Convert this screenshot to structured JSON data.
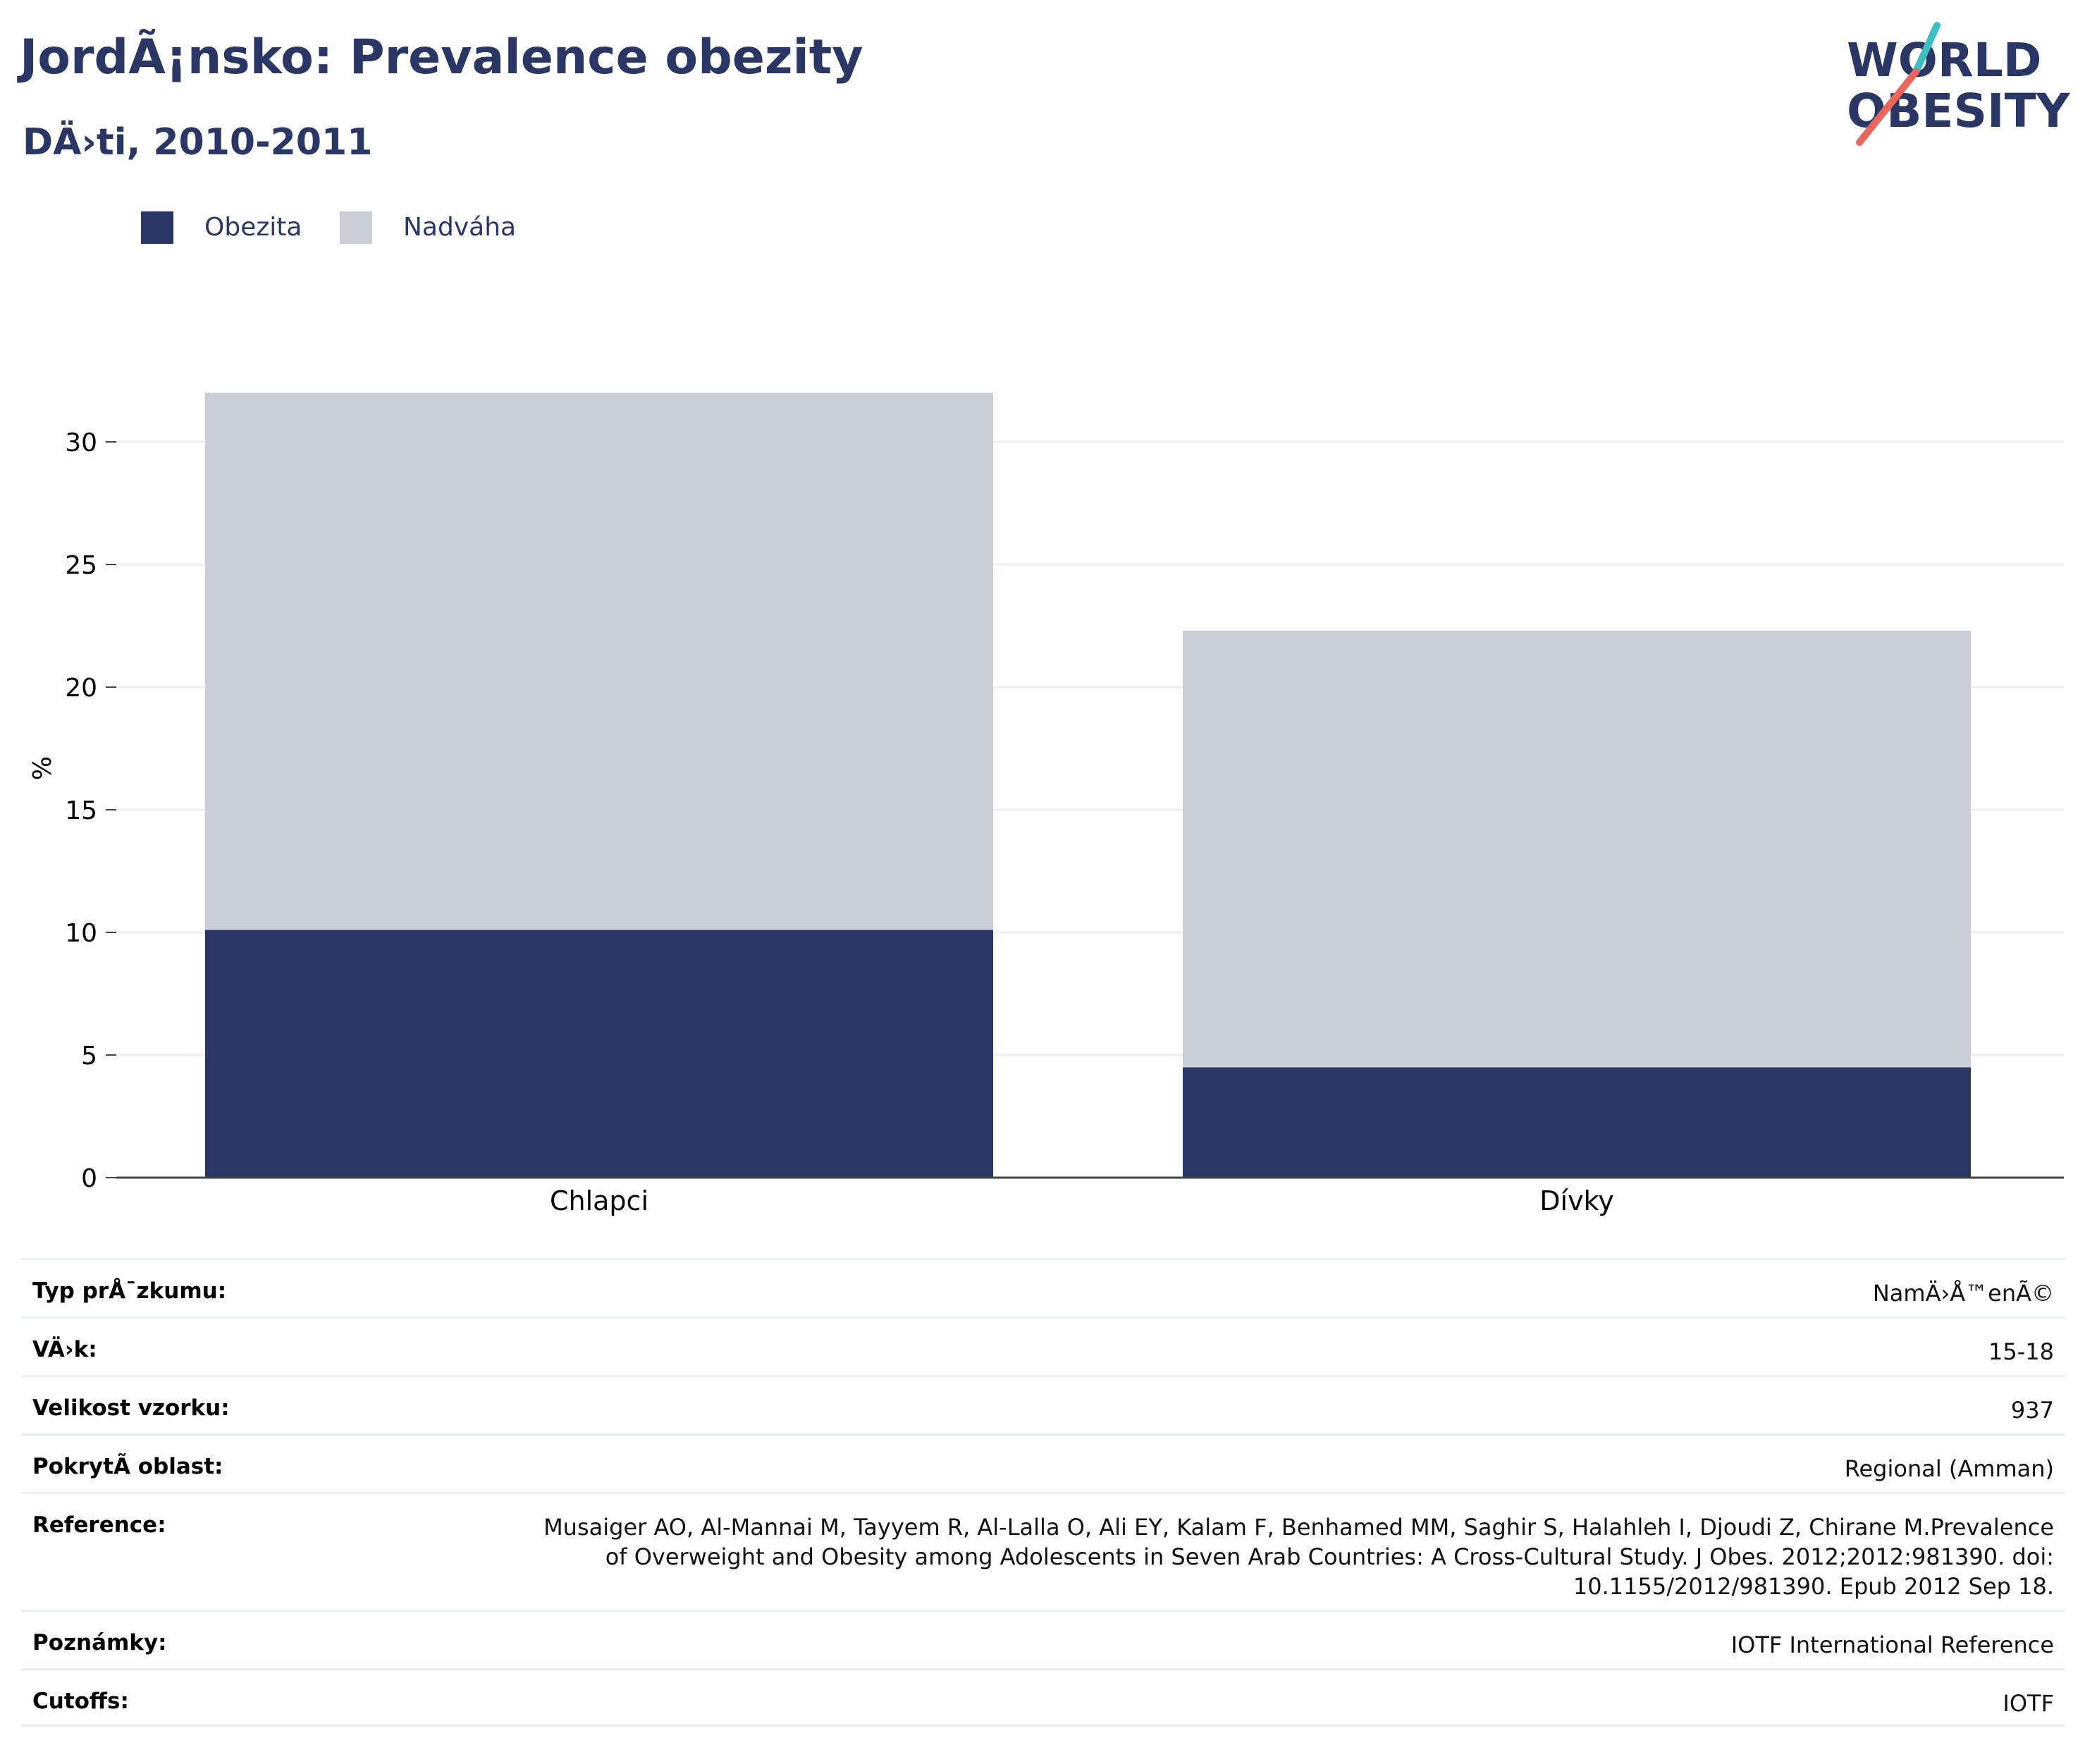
{
  "header": {
    "title": "JordÃ¡nsko: Prevalence obezity",
    "subtitle": "DÄ›ti, 2010-2011"
  },
  "logo": {
    "line1": "WORLD",
    "line2": "OBESITY",
    "colors": {
      "navy": "#2a3663",
      "teal": "#3dbec3",
      "coral": "#e8665a"
    }
  },
  "legend": {
    "items": [
      {
        "label": "Obezita",
        "color": "#2a3663"
      },
      {
        "label": "Nadváha",
        "color": "#cbcdd8"
      }
    ]
  },
  "chart_data": {
    "type": "bar",
    "stacked": true,
    "categories": [
      "Chlapci",
      "Dívky"
    ],
    "series": [
      {
        "name": "Obezita",
        "color": "#2a3663",
        "values": [
          10.1,
          4.5
        ]
      },
      {
        "name": "Nadváha",
        "color": "#cbcdd8",
        "values": [
          21.9,
          17.8
        ]
      }
    ],
    "ylabel": "%",
    "ylim": [
      0,
      32
    ],
    "yticks": [
      "0",
      "5",
      "10",
      "15",
      "20",
      "25",
      "30"
    ],
    "grid": true,
    "legend_position": "top-left"
  },
  "meta": {
    "survey_type": {
      "label": "Typ prÅ¯zkumu:",
      "value": "NamÄ›Å™enÃ©"
    },
    "age": {
      "label": "VÄ›k:",
      "value": "15-18"
    },
    "sample_size": {
      "label": "Velikost vzorku:",
      "value": "937"
    },
    "coverage": {
      "label": "PokrytÃ­ oblast:",
      "value": "Regional (Amman)"
    },
    "reference": {
      "label": "Reference:",
      "lines": [
        "Musaiger AO, Al-Mannai M, Tayyem R, Al-Lalla O, Ali EY, Kalam F, Benhamed MM, Saghir S, Halahleh I, Djoudi Z, Chirane M.Prevalence",
        "of Overweight and Obesity among Adolescents in Seven Arab Countries: A Cross-Cultural Study. J Obes. 2012;2012:981390. doi:",
        "10.1155/2012/981390. Epub 2012 Sep 18."
      ]
    },
    "notes": {
      "label": "Poznámky:",
      "value": "IOTF International Reference"
    },
    "cutoffs": {
      "label": "Cutoffs:",
      "value": "IOTF"
    }
  }
}
